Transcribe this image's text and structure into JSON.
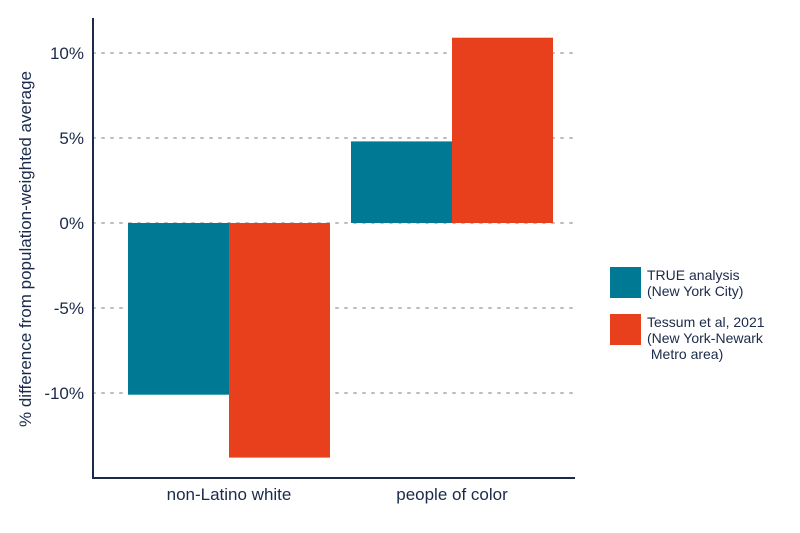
{
  "colors": {
    "series_1": "#007a94",
    "series_2": "#e8401c",
    "axis": "#1b2a4a",
    "grid": "#bdbdbd",
    "text": "#1b2a4a"
  },
  "chart_data": {
    "type": "bar",
    "title": "",
    "xlabel": "",
    "ylabel": "% difference from population-weighted average",
    "categories": [
      "non-Latino white",
      "people of color"
    ],
    "series": [
      {
        "name": "TRUE analysis (New York City)",
        "values": [
          -10.1,
          4.8
        ]
      },
      {
        "name": "Tessum et al, 2021 (New York-Newark Metro area)",
        "values": [
          -13.8,
          10.9
        ]
      }
    ],
    "ylim": [
      -15,
      12.5
    ],
    "yticks": [
      10,
      5,
      0,
      -5,
      -10
    ],
    "ytick_labels": [
      "10%",
      "5%",
      "0%",
      "-5%",
      "-10%"
    ],
    "grid": "horizontal dotted",
    "legend_position": "right"
  },
  "legend": {
    "items": [
      {
        "lines": [
          "TRUE analysis",
          "(New York City)"
        ]
      },
      {
        "lines": [
          "Tessum et al, 2021",
          "(New York-Newark",
          " Metro area)"
        ]
      }
    ]
  }
}
